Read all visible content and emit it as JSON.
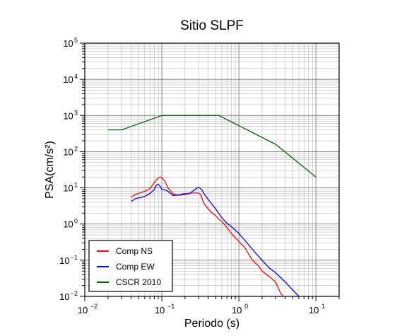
{
  "chart_data": {
    "type": "line",
    "title": "Sitio SLPF",
    "xlabel": "Periodo (s)",
    "ylabel": "PSA(cm/s²)",
    "x_scale": "log",
    "y_scale": "log",
    "xlim": [
      0.01,
      20
    ],
    "ylim": [
      0.01,
      100000
    ],
    "x_major_ticks": [
      {
        "value": 0.01,
        "base": "10",
        "exp": "−2"
      },
      {
        "value": 0.1,
        "base": "10",
        "exp": "−1"
      },
      {
        "value": 1,
        "base": "10",
        "exp": "0"
      },
      {
        "value": 10,
        "base": "10",
        "exp": "1"
      }
    ],
    "y_major_ticks": [
      {
        "value": 0.01,
        "base": "10",
        "exp": "−2"
      },
      {
        "value": 0.1,
        "base": "10",
        "exp": "−1"
      },
      {
        "value": 1,
        "base": "10",
        "exp": "0"
      },
      {
        "value": 10,
        "base": "10",
        "exp": "1"
      },
      {
        "value": 100,
        "base": "10",
        "exp": "2"
      },
      {
        "value": 1000,
        "base": "10",
        "exp": "3"
      },
      {
        "value": 10000,
        "base": "10",
        "exp": "4"
      },
      {
        "value": 100000,
        "base": "10",
        "exp": "5"
      }
    ],
    "grid": true,
    "legend_position": "bottom-left",
    "series": [
      {
        "name": "Comp NS",
        "color": "#ff0000",
        "points": [
          [
            0.04,
            5.5
          ],
          [
            0.045,
            6.5
          ],
          [
            0.05,
            7
          ],
          [
            0.06,
            8
          ],
          [
            0.07,
            9.5
          ],
          [
            0.08,
            14
          ],
          [
            0.09,
            19
          ],
          [
            0.095,
            20
          ],
          [
            0.1,
            19
          ],
          [
            0.11,
            15
          ],
          [
            0.12,
            10
          ],
          [
            0.14,
            6.8
          ],
          [
            0.16,
            6.3
          ],
          [
            0.2,
            7
          ],
          [
            0.25,
            7.2
          ],
          [
            0.3,
            7.2
          ],
          [
            0.32,
            6.5
          ],
          [
            0.35,
            3.8
          ],
          [
            0.4,
            2.6
          ],
          [
            0.45,
            2.0
          ],
          [
            0.5,
            1.7
          ],
          [
            0.55,
            1.35
          ],
          [
            0.6,
            1.2
          ],
          [
            0.7,
            0.8
          ],
          [
            0.8,
            0.55
          ],
          [
            0.9,
            0.42
          ],
          [
            1.0,
            0.33
          ],
          [
            1.2,
            0.22
          ],
          [
            1.5,
            0.1
          ],
          [
            1.8,
            0.07
          ],
          [
            2.0,
            0.05
          ],
          [
            2.5,
            0.035
          ],
          [
            3.0,
            0.025
          ],
          [
            3.5,
            0.012
          ],
          [
            3.8,
            0.01
          ]
        ]
      },
      {
        "name": "Comp EW",
        "color": "#0000ff",
        "points": [
          [
            0.04,
            4.2
          ],
          [
            0.045,
            5
          ],
          [
            0.05,
            5.3
          ],
          [
            0.055,
            5.5
          ],
          [
            0.06,
            5.8
          ],
          [
            0.07,
            7
          ],
          [
            0.08,
            9
          ],
          [
            0.085,
            12
          ],
          [
            0.09,
            12.5
          ],
          [
            0.095,
            11
          ],
          [
            0.1,
            9
          ],
          [
            0.11,
            8.8
          ],
          [
            0.12,
            8
          ],
          [
            0.13,
            7
          ],
          [
            0.14,
            6.2
          ],
          [
            0.16,
            6.3
          ],
          [
            0.2,
            6.5
          ],
          [
            0.23,
            7
          ],
          [
            0.25,
            8
          ],
          [
            0.28,
            9.5
          ],
          [
            0.3,
            10.5
          ],
          [
            0.33,
            9
          ],
          [
            0.35,
            7
          ],
          [
            0.4,
            4.8
          ],
          [
            0.5,
            2.6
          ],
          [
            0.6,
            1.5
          ],
          [
            0.7,
            1.05
          ],
          [
            0.8,
            0.85
          ],
          [
            1.0,
            0.55
          ],
          [
            1.2,
            0.35
          ],
          [
            1.5,
            0.2
          ],
          [
            2.0,
            0.1
          ],
          [
            2.5,
            0.06
          ],
          [
            3.0,
            0.045
          ],
          [
            4.0,
            0.025
          ],
          [
            5.0,
            0.015
          ],
          [
            6.0,
            0.01
          ]
        ]
      },
      {
        "name": "CSCR 2010",
        "color": "#006400",
        "points": [
          [
            0.02,
            400
          ],
          [
            0.03,
            400
          ],
          [
            0.1,
            1000
          ],
          [
            0.55,
            1000
          ],
          [
            3.0,
            160
          ],
          [
            10.0,
            20
          ]
        ]
      }
    ]
  }
}
